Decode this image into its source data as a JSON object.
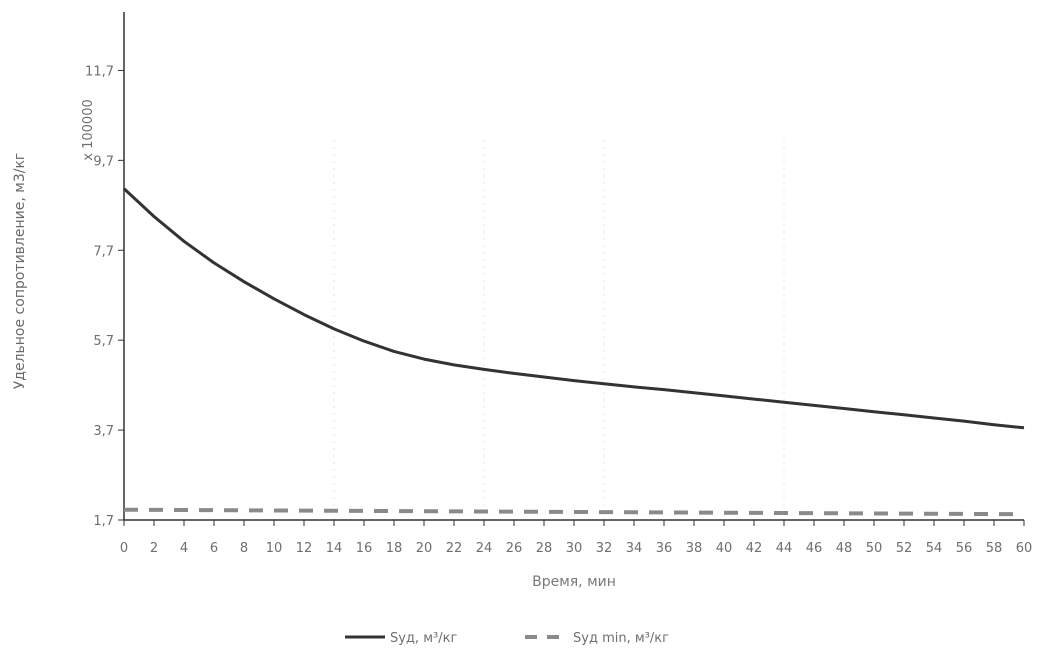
{
  "chart_data": {
    "type": "line",
    "xlabel": "Время, мин",
    "ylabel": "Удельное сопротивление, м3/кг",
    "y_multiplier_label": "x 100000",
    "xlim": [
      0,
      60
    ],
    "ylim": [
      1.7,
      13.0
    ],
    "x_ticks": [
      "0",
      "2",
      "4",
      "6",
      "8",
      "10",
      "12",
      "14",
      "16",
      "18",
      "20",
      "22",
      "24",
      "26",
      "28",
      "30",
      "32",
      "34",
      "36",
      "38",
      "40",
      "42",
      "44",
      "46",
      "48",
      "50",
      "52",
      "54",
      "56",
      "58",
      "60"
    ],
    "y_ticks": [
      "1,7",
      "3,7",
      "5,7",
      "7,7",
      "9,7",
      "11,7"
    ],
    "y_tick_values": [
      1.7,
      3.7,
      5.7,
      7.7,
      9.7,
      11.7
    ],
    "grid": "faint",
    "legend_position": "bottom",
    "series": [
      {
        "name": "Sуд, м³/кг",
        "style": "solid",
        "color": "#333333",
        "x": [
          0,
          2,
          4,
          6,
          8,
          10,
          12,
          14,
          16,
          18,
          20,
          22,
          24,
          26,
          28,
          30,
          32,
          34,
          36,
          38,
          40,
          42,
          44,
          46,
          48,
          50,
          52,
          54,
          56,
          58,
          60
        ],
        "values": [
          9.07,
          8.45,
          7.9,
          7.42,
          7.0,
          6.62,
          6.27,
          5.95,
          5.68,
          5.45,
          5.28,
          5.15,
          5.05,
          4.96,
          4.88,
          4.8,
          4.73,
          4.66,
          4.6,
          4.53,
          4.46,
          4.39,
          4.32,
          4.25,
          4.18,
          4.11,
          4.04,
          3.97,
          3.9,
          3.82,
          3.75
        ]
      },
      {
        "name": "Sуд min, м³/кг",
        "style": "dashed",
        "color": "#8a8a8a",
        "x": [
          0,
          60
        ],
        "values": [
          1.93,
          1.83
        ]
      }
    ]
  }
}
